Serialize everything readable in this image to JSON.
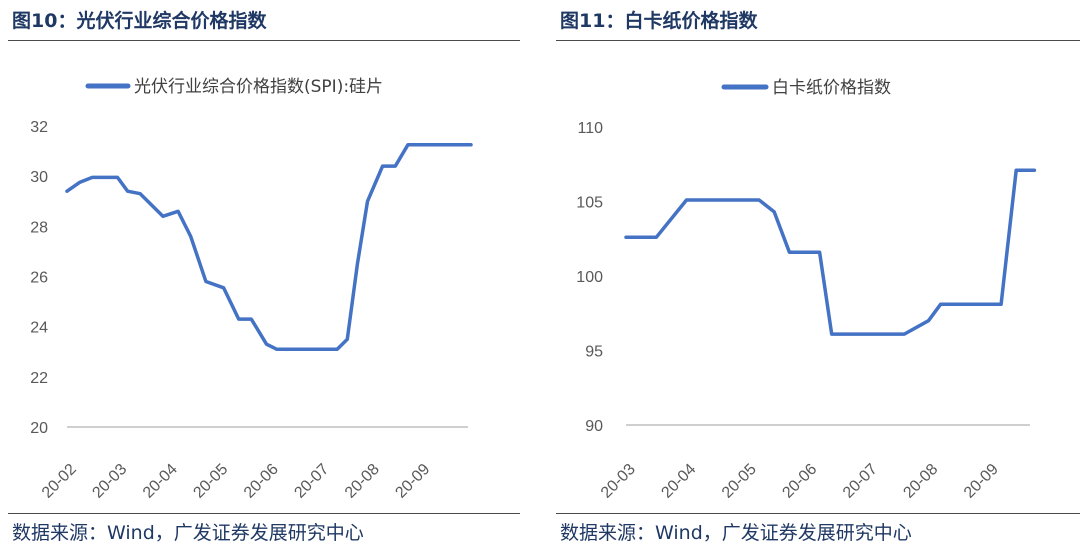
{
  "panels": [
    {
      "fig_title": "图10：光伏行业综合价格指数",
      "source": "数据来源：Wind，广发证券发展研究中心"
    },
    {
      "fig_title": "图11：白卡纸价格指数",
      "source": "数据来源：Wind，广发证券发展研究中心"
    }
  ],
  "chart_data": [
    {
      "type": "line",
      "title": "",
      "xlabel": "",
      "ylabel": "",
      "ylim": [
        20,
        32
      ],
      "yticks": [
        "20",
        "22",
        "24",
        "26",
        "28",
        "30",
        "32"
      ],
      "xticks": [
        "20-02",
        "20-03",
        "20-04",
        "20-05",
        "20-06",
        "20-07",
        "20-08",
        "20-09"
      ],
      "grid": false,
      "legend": "top",
      "color": "#4472c4",
      "series": [
        {
          "name": "光伏行业综合价格指数(SPI):硅片",
          "x": [
            0,
            0.25,
            0.5,
            1,
            1.2,
            1.45,
            1.9,
            2.2,
            2.45,
            2.75,
            3.1,
            3.4,
            3.65,
            3.95,
            4.15,
            5.15,
            5.35,
            5.55,
            5.75,
            5.95,
            6.25,
            6.5,
            6.75,
            7.0,
            7.25,
            7.5,
            8.0
          ],
          "values": [
            29.4,
            29.75,
            29.95,
            29.95,
            29.4,
            29.3,
            28.4,
            28.6,
            27.6,
            25.8,
            25.55,
            24.3,
            24.3,
            23.3,
            23.1,
            23.1,
            23.1,
            23.5,
            26.5,
            29.0,
            30.4,
            30.4,
            31.25,
            31.25,
            31.25,
            31.25,
            31.25
          ]
        }
      ]
    },
    {
      "type": "line",
      "title": "",
      "xlabel": "",
      "ylabel": "",
      "ylim": [
        90,
        110
      ],
      "yticks": [
        "90",
        "95",
        "100",
        "105",
        "110"
      ],
      "xticks": [
        "20-03",
        "20-04",
        "20-05",
        "20-06",
        "20-07",
        "20-08",
        "20-09"
      ],
      "grid": false,
      "legend": "top",
      "color": "#4472c4",
      "series": [
        {
          "name": "白卡纸价格指数",
          "x": [
            0,
            0.5,
            1.0,
            2.2,
            2.45,
            2.7,
            3.2,
            3.4,
            3.75,
            4.6,
            5.0,
            5.2,
            5.6,
            6.2,
            6.45,
            6.75
          ],
          "values": [
            102.6,
            102.6,
            105.1,
            105.1,
            104.3,
            101.6,
            101.6,
            96.1,
            96.1,
            96.1,
            97.0,
            98.1,
            98.1,
            98.1,
            107.1,
            107.1
          ]
        }
      ]
    }
  ]
}
